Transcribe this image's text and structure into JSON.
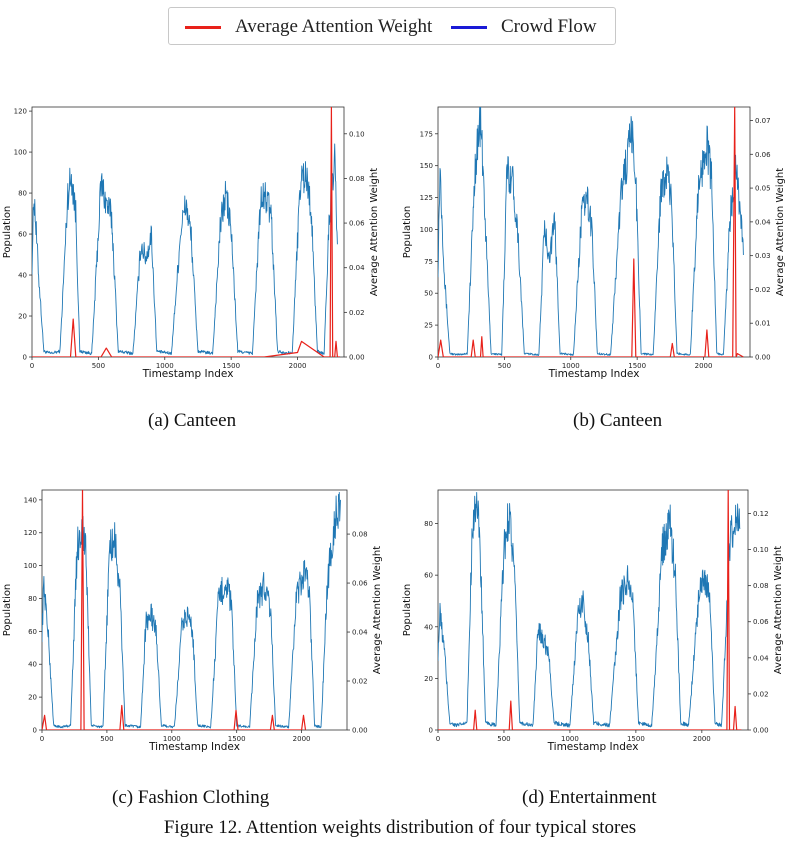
{
  "legend": {
    "items": [
      {
        "label": "Average Attention Weight",
        "color": "#e8211a"
      },
      {
        "label": "Crowd Flow",
        "color": "#1a1ad6"
      }
    ]
  },
  "figure_caption": "Figure 12. Attention weights distribution of four typical stores",
  "colors": {
    "flow": "#1f77b4",
    "attention": "#e8211a"
  },
  "chart_data": [
    {
      "type": "line",
      "caption": "(a) Canteen",
      "xlabel": "Timestamp Index",
      "ylabel": "Population",
      "y2label": "Average Attention Weight",
      "xlim": [
        0,
        2350
      ],
      "ylim": [
        0,
        122
      ],
      "y2lim": [
        0,
        0.112
      ],
      "xticks": [
        0,
        500,
        1000,
        1500,
        2000
      ],
      "yticks": [
        0,
        20,
        40,
        60,
        80,
        100,
        120
      ],
      "y2ticks": [
        0.0,
        0.02,
        0.04,
        0.06,
        0.08,
        0.1
      ],
      "series": [
        {
          "name": "Crowd Flow",
          "axis": "left",
          "start_x": 0,
          "x": [
            0,
            15,
            50,
            90,
            140,
            210,
            270,
            300,
            330,
            360,
            450,
            520,
            560,
            600,
            650,
            760,
            820,
            860,
            900,
            940,
            1050,
            1120,
            1160,
            1200,
            1250,
            1360,
            1420,
            1460,
            1500,
            1550,
            1660,
            1720,
            1760,
            1800,
            1850,
            1960,
            2020,
            2060,
            2100,
            2150,
            2200,
            2240,
            2280,
            2300
          ],
          "y": [
            45,
            80,
            40,
            2,
            1,
            2,
            80,
            88,
            70,
            2,
            1,
            85,
            75,
            68,
            2,
            1,
            55,
            48,
            60,
            2,
            1,
            62,
            75,
            58,
            2,
            1,
            65,
            80,
            62,
            2,
            1,
            75,
            78,
            70,
            2,
            1,
            85,
            90,
            75,
            2,
            1,
            70,
            95,
            55
          ]
        },
        {
          "name": "Average Attention Weight",
          "axis": "right",
          "x": [
            0,
            290,
            310,
            330,
            520,
            560,
            600,
            1180,
            1750,
            2000,
            2030,
            2200,
            2245,
            2255,
            2265,
            2280,
            2290,
            2300,
            2320
          ],
          "y": [
            0,
            0,
            0.017,
            0,
            0,
            0.004,
            0,
            0,
            0,
            0.002,
            0.007,
            0,
            0,
            0.112,
            0,
            0,
            0.007,
            0,
            0
          ]
        }
      ]
    },
    {
      "type": "line",
      "caption": "(b) Canteen",
      "xlabel": "Timestamp Index",
      "ylabel": "Population",
      "y2label": "Average Attention Weight",
      "xlim": [
        0,
        2350
      ],
      "ylim": [
        0,
        196
      ],
      "y2lim": [
        0,
        0.074
      ],
      "xticks": [
        0,
        500,
        1000,
        1500,
        2000
      ],
      "yticks": [
        0,
        25,
        50,
        75,
        100,
        125,
        150,
        175
      ],
      "y2ticks": [
        0.0,
        0.01,
        0.02,
        0.03,
        0.04,
        0.05,
        0.06,
        0.07
      ],
      "series": [
        {
          "name": "Crowd Flow",
          "axis": "left",
          "x": [
            0,
            15,
            50,
            90,
            140,
            220,
            280,
            320,
            350,
            400,
            480,
            520,
            560,
            600,
            650,
            760,
            800,
            840,
            880,
            920,
            1020,
            1080,
            1120,
            1160,
            1200,
            1300,
            1380,
            1460,
            1490,
            1530,
            1620,
            1680,
            1720,
            1760,
            1800,
            1900,
            1960,
            2020,
            2060,
            2100,
            2150,
            2200,
            2250,
            2300
          ],
          "y": [
            70,
            150,
            60,
            2,
            1,
            2,
            150,
            188,
            120,
            2,
            1,
            148,
            140,
            100,
            2,
            1,
            100,
            80,
            105,
            2,
            1,
            110,
            125,
            100,
            2,
            1,
            130,
            175,
            140,
            2,
            1,
            135,
            145,
            120,
            2,
            1,
            130,
            170,
            140,
            2,
            1,
            110,
            150,
            80
          ]
        },
        {
          "name": "Average Attention Weight",
          "axis": "right",
          "x": [
            0,
            20,
            40,
            60,
            250,
            265,
            280,
            320,
            330,
            340,
            1460,
            1475,
            1490,
            1750,
            1765,
            1780,
            2010,
            2025,
            2040,
            2220,
            2235,
            2245,
            2255,
            2300
          ],
          "y": [
            0,
            0.005,
            0,
            0,
            0,
            0.005,
            0,
            0,
            0.006,
            0,
            0,
            0.029,
            0,
            0,
            0.004,
            0,
            0,
            0.008,
            0,
            0,
            0.074,
            0,
            0.001,
            0
          ]
        }
      ]
    },
    {
      "type": "line",
      "caption": "(c) Fashion Clothing",
      "xlabel": "Timestamp Index",
      "ylabel": "Population",
      "y2label": "Average Attention Weight",
      "xlim": [
        0,
        2350
      ],
      "ylim": [
        0,
        146
      ],
      "y2lim": [
        0,
        0.098
      ],
      "xticks": [
        0,
        500,
        1000,
        1500,
        2000
      ],
      "yticks": [
        0,
        20,
        40,
        60,
        80,
        100,
        120,
        140
      ],
      "y2ticks": [
        0.0,
        0.02,
        0.04,
        0.06,
        0.08
      ],
      "series": [
        {
          "name": "Crowd Flow",
          "axis": "left",
          "x": [
            0,
            15,
            50,
            90,
            140,
            220,
            270,
            310,
            340,
            380,
            470,
            520,
            560,
            600,
            640,
            760,
            800,
            840,
            880,
            920,
            1020,
            1080,
            1120,
            1160,
            1200,
            1300,
            1360,
            1420,
            1460,
            1500,
            1600,
            1660,
            1720,
            1760,
            1800,
            1900,
            1960,
            2020,
            2060,
            2100,
            2150,
            2200,
            2260,
            2300
          ],
          "y": [
            60,
            90,
            55,
            2,
            1,
            2,
            110,
            125,
            105,
            2,
            1,
            110,
            115,
            85,
            2,
            1,
            65,
            70,
            60,
            2,
            1,
            65,
            70,
            60,
            2,
            1,
            80,
            90,
            75,
            2,
            1,
            80,
            88,
            75,
            2,
            1,
            80,
            95,
            85,
            2,
            1,
            90,
            130,
            140
          ]
        },
        {
          "name": "Average Attention Weight",
          "axis": "right",
          "x": [
            0,
            20,
            35,
            50,
            300,
            312,
            324,
            600,
            615,
            630,
            1480,
            1495,
            1510,
            1760,
            1775,
            1790,
            2000,
            2015,
            2030
          ],
          "y": [
            0,
            0.006,
            0,
            0,
            0,
            0.098,
            0,
            0,
            0.01,
            0,
            0,
            0.008,
            0,
            0,
            0.006,
            0,
            0,
            0.006,
            0
          ]
        }
      ]
    },
    {
      "type": "line",
      "caption": "(d) Entertainment",
      "xlabel": "Timestamp Index",
      "ylabel": "Population",
      "y2label": "Average Attention Weight",
      "xlim": [
        0,
        2350
      ],
      "ylim": [
        0,
        93
      ],
      "y2lim": [
        0,
        0.133
      ],
      "xticks": [
        0,
        500,
        1000,
        1500,
        2000
      ],
      "yticks": [
        0,
        20,
        40,
        60,
        80
      ],
      "y2ticks": [
        0.0,
        0.02,
        0.04,
        0.06,
        0.08,
        0.1,
        0.12
      ],
      "series": [
        {
          "name": "Crowd Flow",
          "axis": "left",
          "x": [
            0,
            15,
            50,
            90,
            140,
            220,
            260,
            290,
            320,
            360,
            440,
            500,
            540,
            580,
            620,
            720,
            760,
            800,
            840,
            880,
            1000,
            1060,
            1100,
            1140,
            1180,
            1300,
            1380,
            1440,
            1480,
            1520,
            1620,
            1700,
            1760,
            1800,
            1840,
            1900,
            1980,
            2020,
            2060,
            2100,
            2150,
            2210,
            2250,
            2290
          ],
          "y": [
            30,
            45,
            30,
            2,
            1,
            2,
            80,
            90,
            70,
            2,
            1,
            70,
            85,
            60,
            2,
            1,
            40,
            35,
            30,
            2,
            1,
            45,
            50,
            35,
            2,
            1,
            50,
            60,
            48,
            2,
            1,
            70,
            80,
            60,
            2,
            1,
            55,
            60,
            50,
            2,
            1,
            70,
            83,
            78
          ]
        },
        {
          "name": "Average Attention Weight",
          "axis": "right",
          "x": [
            0,
            270,
            282,
            294,
            540,
            552,
            564,
            2190,
            2200,
            2210,
            2220,
            2240,
            2252,
            2264,
            2300
          ],
          "y": [
            0,
            0,
            0.011,
            0,
            0,
            0.016,
            0,
            0,
            0.133,
            0,
            0,
            0,
            0.013,
            0,
            0
          ]
        }
      ]
    }
  ]
}
